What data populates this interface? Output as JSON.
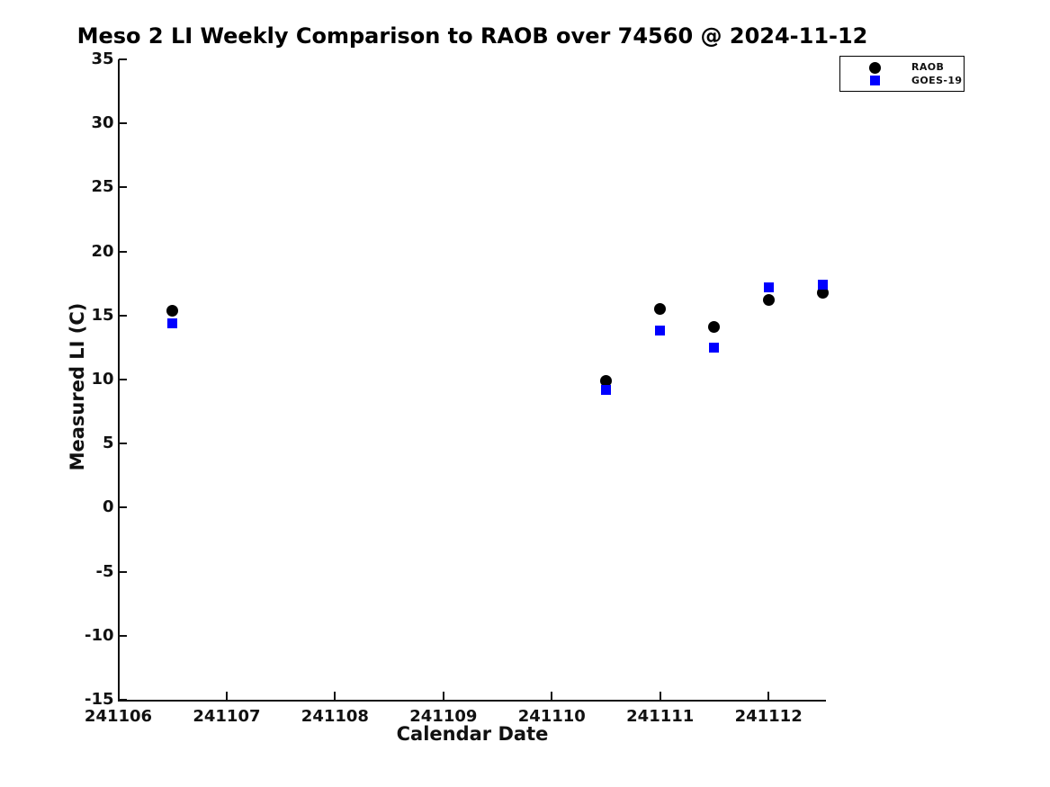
{
  "chart_data": {
    "type": "scatter",
    "title": "Meso 2 LI Weekly Comparison to RAOB over 74560 @ 2024-11-12",
    "xlabel": "Calendar Date",
    "ylabel": "Measured LI (C)",
    "xlim": [
      241106,
      241112.53
    ],
    "ylim": [
      -15,
      35
    ],
    "xticks": [
      241106,
      241107,
      241108,
      241109,
      241110,
      241111,
      241112
    ],
    "yticks": [
      35,
      30,
      25,
      20,
      15,
      10,
      5,
      0,
      -5,
      -10,
      -15
    ],
    "grid": false,
    "legend_position": "top-right",
    "background_color": "#ffffff",
    "series": [
      {
        "name": "RAOB",
        "marker": "circle",
        "color": "#000000",
        "x": [
          241106.5,
          241110.5,
          241111.0,
          241111.5,
          241112.0,
          241112.5
        ],
        "y": [
          15.4,
          9.9,
          15.5,
          14.1,
          16.2,
          16.8
        ]
      },
      {
        "name": "GOES-19",
        "marker": "square",
        "color": "#0000ff",
        "x": [
          241106.5,
          241110.5,
          241111.0,
          241111.5,
          241112.0,
          241112.5
        ],
        "y": [
          14.4,
          9.2,
          13.8,
          12.5,
          17.2,
          17.4
        ]
      }
    ]
  }
}
